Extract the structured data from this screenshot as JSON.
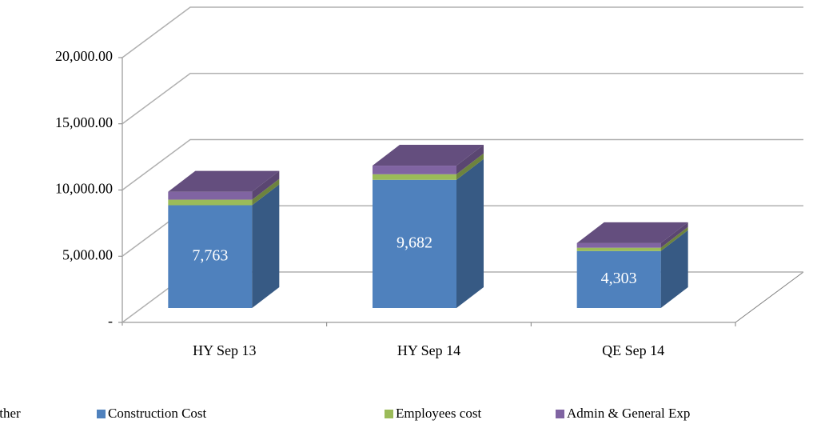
{
  "chart_data": {
    "type": "bar3d_stacked",
    "categories": [
      "HY Sep 13",
      "HY Sep 14",
      "QE Sep 14"
    ],
    "series": [
      {
        "name": "Other",
        "color": "#4bacc6",
        "values": [
          0,
          0,
          0
        ]
      },
      {
        "name": "Construction Cost",
        "color": "#4f81bd",
        "values": [
          7763,
          9682,
          4303
        ],
        "value_labels": [
          "7,763",
          "9,682",
          "4,303"
        ]
      },
      {
        "name": "Employees cost",
        "color": "#9bbb59",
        "values": [
          420,
          420,
          250
        ]
      },
      {
        "name": "Admin & General Exp",
        "color": "#8064a2",
        "values": [
          600,
          650,
          350
        ]
      }
    ],
    "ylim": [
      0,
      20000
    ],
    "yticks": [
      {
        "value": 0,
        "label": "-"
      },
      {
        "value": 5000,
        "label": "5,000.00"
      },
      {
        "value": 10000,
        "label": "10,000.00"
      },
      {
        "value": 15000,
        "label": "15,000.00"
      },
      {
        "value": 20000,
        "label": "20,000.00"
      }
    ],
    "grid": true,
    "legend": "bottom"
  }
}
